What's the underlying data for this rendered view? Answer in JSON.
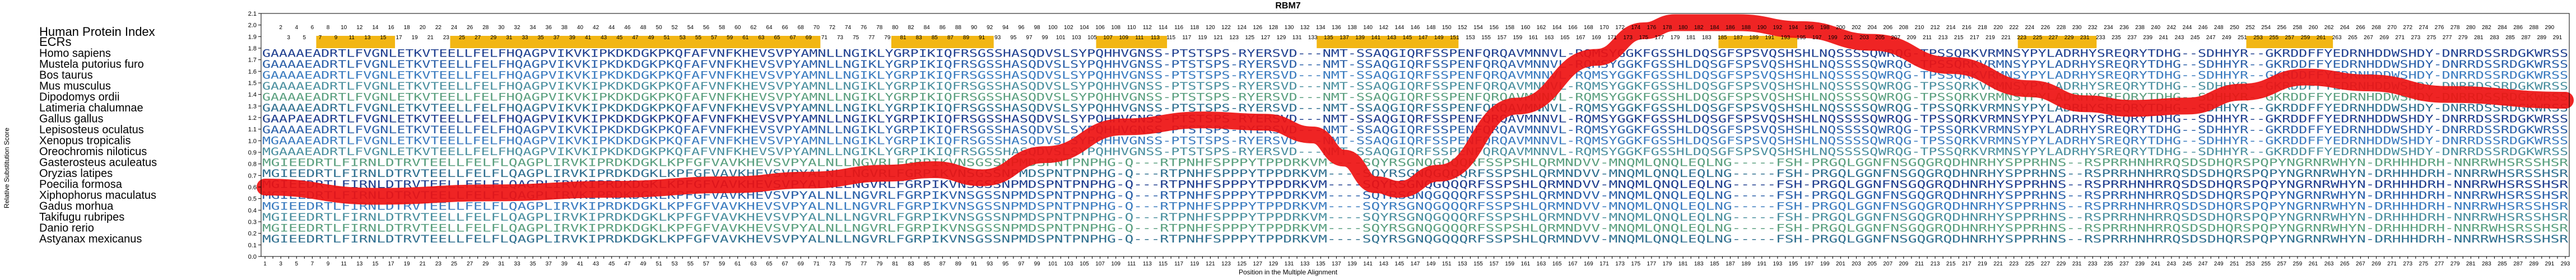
{
  "chart_data": {
    "type": "line",
    "title": "RBM7",
    "xlabel": "Position in the Multiple Alignment",
    "ylabel": "Relative Substitution Score",
    "xlim": [
      1,
      293
    ],
    "ylim": [
      0.0,
      2.1
    ],
    "yticks": [
      "0.0",
      "0.1",
      "0.2",
      "0.3",
      "0.4",
      "0.5",
      "0.6",
      "0.7",
      "0.8",
      "0.9",
      "1.0",
      "1.1",
      "1.2",
      "1.3",
      "1.4",
      "1.5",
      "1.6",
      "1.7",
      "1.8",
      "1.9",
      "2.0",
      "2.1"
    ],
    "grid": false,
    "row_labels": [
      "Human Protein Index",
      "ECRs",
      "Homo sapiens",
      "Mustela putorius furo",
      "Bos taurus",
      "Mus musculus",
      "Dipodomys ordii",
      "Latimeria chalumnae",
      "Gallus gallus",
      "Lepisosteus oculatus",
      "Xenopus tropicalis",
      "Oreochromis niloticus",
      "Gasterosteus aculeatus",
      "Oryzias latipes",
      "Poecilia formosa",
      "Xiphophorus maculatus",
      "Gadus morhua",
      "Takifugu rubripes",
      "Danio rerio",
      "Astyanax mexicanus"
    ],
    "ecr_regions": [
      [
        8,
        17
      ],
      [
        25,
        71
      ],
      [
        81,
        93
      ],
      [
        107,
        115
      ],
      [
        135,
        152
      ],
      [
        186,
        195
      ],
      [
        224,
        233
      ],
      [
        253,
        263
      ]
    ],
    "sequences": [
      "GAAAAEADRTLFVGNLETKVTEELLFELFHQAGPVIKVKIPKDKDGKPKQFAFVNFKHEVSVPYAMNLLNGIKLYGRPIKIQFRSGSSHASQDVSLSYPQHHVGNSS-PTSTSPS-RYERSVD---NMT-SSAQGIQRFSSPENFQRQAVMNNVL-RQMSYGGKFGSSHLDQSGFSPSVQSHSHLNQSSSSQWRQG-TPSSQRKVRMNSYPYLADRHYSREQRYTDHG--SDHHYR--GKRDDFFYEDRNHDDWSHDY-DNRRDSSRDGKWRSS",
      "GAAAAEADRTLFVGNLETKVTEELLFELFHQAGPVIKVKIPKDKDGKPKQFAFVNFKHEVSVPYAMNLLNGIKLYGRPIKIQFRSGSSHASQDVSLSYPQHHVGNSS-PTSTSPS-RYERSVD---NMT-SSAQGIQRFSSPENFQRQAVMNNVL-RQMSYGGKFGSSHLDQSGFSPSVQSHSHLNQSSSSQWRQG-TPSSQRKVRMNSYPYLADRHYSREQRYTDHG--SDHHYR--GKRDDFFYEDRNHDDWSHDY-DNRRDSSRDGKWRSS",
      "GAAAAEADRTLFVGNLETKVTEELLFELFHQAGPVIKVKIPKDKDGKPKQFAFVNFKHEVSVPYAMNLLNGIKLYGRPIKIQFRSGSSHASQDVSLSYPQHHVGNSS-PTSTSPS-RYERSVD---NMT-SSAQGIQRFSSPENFQRQAVMNNVL-RQMSYGGKFGSSHLDQSGFSPSVQSHSHLNQSSSSQWRQG-TPSSQRKVRMNSYPYLADRHYSREQRYTDHG--SDHHYR--GKRDDFFYEDRNHDDWSHDY-DNRRDSSRDGKWRSS",
      "GAAAAEADRTLFVGNLETKVTEELLFELFHQAGPVIKVKIPKDKDGKPKQFAFVNFKHEVSVPYAMNLLNGIKLYGRPIKIQFRSGSSHASQDVSLSYPQHHVGNSS-PTSTSPS-RYERSVD---NMT-SSAQGIQRFSSPENFQRQAVMNNVL-RQMSYGGKFGSSHLDQSGFSPSVQSHSHLNQSSSSQWRQG-TPSSQRKVRMNSYPYLADRHYSREQRYTDHG--SDHHYR--GKRDDFFYEDRNHDDWSHDY-DNRRDSSRDGKWRSS",
      "GAAAAEADRTLFVGNLETKVTEELLFELFHQAGPVIKVKIPKDKDGKPKQFAFVNFKHEVSVPYAMNLLNGIKLYGRPIKIQFRSGSSHASQDVSLSYPQHHVGNSS-PTSTSPS-RYERSVD---NMT-SSAQGIQRFSSPENFQRQAVMNNVL-RQMSYGGKFGSSHLDQSGFSPSVQSHSHLNQSSSSQWRQG-TPSSQRKVRMNSYPYLADRHYSREQRYTDHG--SDHHYR--GKRDDFFYEDRNHDDWSHDY-DNRRDSSRDGKWRSS",
      "GAAAAEADRTLFVGNLETKVTEELLFELFHQAGPVIKVKIPKDKDGKPKQFAFVNFKHEVSVPYAMNLLNGIKLYGRPIKIQFRSGSSHASQDVSLSYPQHHVGNSS-PTSTSPS-RYERSVD---NMT-SSAQGIQRFSSPENFQRQAVMNNVL-RQMSYGGKFGSSHLDQSGFSPSVQSHSHLNQSSSSQWRQG-TPSSQRKVRMNSYPYLADRHYSREQRYTDHG--SDHHYR--GKRDDFFYEDRNHDDWSHDY-DNRRDSSRDGKWRSS",
      "GAAPAEADRTLFVGNLETKVTEELLFELFHQAGPVIKVKIPKDKDGKPKQFAFVNFKHEVSVPYAMNLLNGIKLYGRPIKIQFRSGSSHASQDVSLSYPQHHVGNSS-PTSTSPS-RYERSVD---NMT-SSAQGIQRFSSPENFQRQAVMNNVL-RQMSYGGKFGSSHLDQSGFSPSVQSHSHLNQSSSSQWRQG-TPSSQRKVRMNSYPYLADRHYSREQRYTDHG--SDHHYR--GKRDDFFYEDRNHDDWSHDY-DNRRDSSRDGKWRSS",
      "GAAAAEADRTLFVGNLETKVTEELLFELFHQAGPVIKVKIPKDKDGKPKQFAFVNFKHEVSVPYAMNLLNGIKLYGRPIKIQFRSGSSHASQDVSLSYPQHHVGNSS-PTSTSPS-RYERSVD---NMT-SSAQGIQRFSSPENFQRQAVMNNVL-RQMSYGGKFGSSHLDQSGFSPSVQSHSHLNQSSSSQWRQG-TPSSQRKVRMNSYPYLADRHYSREQRYTDHG--SDHHYR--GKRDDFFYEDRNHDDWSHDY-DNRRDSSRDGKWRSS",
      "MGAAAEADRTLFVGNLETKVTEELLFELFHQAGPVIKVKIPKDKDGKPKQFAFVNFKHEVSVPYAMNLLNGIKLYGRPIKIQFRSGSSHASQDVSLSYPQHHVGNSS-PTSTSPS-RYERSVD---NMT-SSAQGIQRFSSPENFQRQAVMNNVL-RQMSYGGKFGSSHLDQSGFSPSVQSHSHLNQSSSSQWRQG-TPSSQRKVRMNSYPYLADRHYSREQRYTDHG--SDHHYR--GKRDDFFYEDRNHDDWSHDY-DNRRDSSRDGKWRSS",
      "MGAAAEADRTLFVGNLETKVTEELLFELFHQAGPVIKVKIPKDKDGKPKQFAFVNFKHEVSVPYAMNLLNGIKLYGRPIKIQFRSGSSHASQDVSLSYPQHHVGNSS-PTSTSPS-RYERSVD---NMT-SSAQGIQRFSSPENFQRQAVMNNVL-RQMSYGGKFGSSHLDQSGFSPSVQSHSHLNQSSSSQWRQG-TPSSQRKVRMNSYPYLADRHYSREQRYTDHG--SDHHYR--GKRDDFFYEDRNHDDWSHDY-DNRRDSSRDGKWRSS",
      "MGIEEDRTLFIRNLDTRVTEELLFELFLQAGPLIRVKIPRDKDGKLKPFGFVAVKHEVSVPYALNLLNGVRLFGRPIKVNSGSSNPMDSPNTPNPHG-Q---RTPNHFSPPPYTPPDRKVM----SQYRSGNQGQQQRFSSPSHLQRMNDVV-MNQMLQNQLEQLNG-----FSH-PRGQLGGNFNSGQGRQDHNRHYSPPRHNS--RSPRRHNHRRQSDSDHQRSPQPYNGRNRWHYN-DRHHHDRH-NNRRWHSRSSHSR",
      "MGIEEDRTLFIRNLDTRVTEELLFELFLQAGPLIRVKIPRDKDGKLKPFGFVAVKHEVSVPYALNLLNGVRLFGRPIKVNSGSSNPMDSPNTPNPHG-Q---RTPNHFSPPPYTPPDRKVM----SQYRSGNQGQQQRFSSPSHLQRMNDVV-MNQMLQNQLEQLNG-----FSH-PRGQLGGNFNSGQGRQDHNRHYSPPRHNS--RSPRRHNHRRQSDSDHQRSPQPYNGRNRWHYN-DRHHHDRH-NNRRWHSRSSHSR",
      "MGIEEDRTLFIRNLDTRVTEELLFELFLQAGPLIRVKIPRDKDGKLKPFGFVAVKHEVSVPYALNLLNGVRLFGRPIKVNSGSSNPMDSPNTPNPHG-Q---RTPNHFSPPPYTPPDRKVM----SQYRSGNQGQQQRFSSPSHLQRMNDVV-MNQMLQNQLEQLNG-----FSH-PRGQLGGNFNSGQGRQDHNRHYSPPRHNS--RSPRRHNHRRQSDSDHQRSPQPYNGRNRWHYN-DRHHHDRH-NNRRWHSRSSHSR",
      "MGIEEDRTLFIRNLDTRVTEELLFELFLQAGPLIRVKIPRDKDGKLKPFGFVAVKHEVSVPYALNLLNGVRLFGRPIKVNSGSSNPMDSPNTPNPHG-Q---RTPNHFSPPPYTPPDRKVM----SQYRSGNQGQQQRFSSPSHLQRMNDVV-MNQMLQNQLEQLNG-----FSH-PRGQLGGNFNSGQGRQDHNRHYSPPRHNS--RSPRRHNHRRQSDSDHQRSPQPYNGRNRWHYN-DRHHHDRH-NNRRWHSRSSHSR",
      "MGIEEDRTLFIRNLDTRVTEELLFELFLQAGPLIRVKIPRDKDGKLKPFGFVAVKHEVSVPYALNLLNGVRLFGRPIKVNSGSSNPMDSPNTPNPHG-Q---RTPNHFSPPPYTPPDRKVM----SQYRSGNQGQQQRFSSPSHLQRMNDVV-MNQMLQNQLEQLNG-----FSH-PRGQLGGNFNSGQGRQDHNRHYSPPRHNS--RSPRRHNHRRQSDSDHQRSPQPYNGRNRWHYN-DRHHHDRH-NNRRWHSRSSHSR",
      "MGIEEDRTLFIRNLDTRVTEELLFELFLQAGPLIRVKIPRDKDGKLKPFGFVAVKHEVSVPYALNLLNGVRLFGRPIKVNSGSSNPMDSPNTPNPHG-Q---RTPNHFSPPPYTPPDRKVM----SQYRSGNQGQQQRFSSPSHLQRMNDVV-MNQMLQNQLEQLNG-----FSH-PRGQLGGNFNSGQGRQDHNRHYSPPRHNS--RSPRRHNHRRQSDSDHQRSPQPYNGRNRWHYN-DRHHHDRH-NNRRWHSRSSHSR",
      "MGIEEDRTLFIRNLDTRVTEELLFELFLQAGPLIRVKIPRDKDGKLKPFGFVAVKHEVSVPYALNLLNGVRLFGRPIKVNSGSSNPMDSPNTPNPHG-Q---RTPNHFSPPPYTPPDRKVM----SQYRSGNQGQQQRFSSPSHLQRMNDVV-MNQMLQNQLEQLNG-----FSH-PRGQLGGNFNSGQGRQDHNRHYSPPRHNS--RSPRRHNHRRQSDSDHQRSPQPYNGRNRWHYN-DRHHHDRH-NNRRWHSRSSHSR",
      "MGIEEDRTLFIRNLDTRVTEELLFELFLQAGPLIRVKIPRDKDGKLKPFGFVAVKHEVSVPYALNLLNGVRLFGRPIKVNSGSSNPMDSPNTPNPHG-Q---RTPNHFSPPPYTPPDRKVM----SQYRSGNQGQQQRFSSPSHLQRMNDVV-MNQMLQNQLEQLNG-----FSH-PRGQLGGNFNSGQGRQDHNRHYSPPRHNS--RSPRRHNHRRQSDSDHQRSPQPYNGRNRWHYN-DRHHHDRH-NNRRWHSRSSHSR"
    ],
    "series": [
      {
        "x": [
          1,
          15,
          30,
          45,
          60,
          70,
          80,
          86,
          92,
          100,
          110,
          120,
          128,
          134,
          138,
          142,
          145,
          150,
          160,
          170,
          176,
          180,
          188,
          196,
          205,
          215,
          225,
          232,
          238,
          245,
          252,
          260,
          268,
          278,
          293
        ],
        "y": [
          0.6,
          0.52,
          0.55,
          0.58,
          0.62,
          0.66,
          0.72,
          0.75,
          0.68,
          0.88,
          1.12,
          1.18,
          1.16,
          1.05,
          0.85,
          0.62,
          0.58,
          0.72,
          1.3,
          1.72,
          1.95,
          2.02,
          2.02,
          1.96,
          1.85,
          1.65,
          1.45,
          1.32,
          1.28,
          1.3,
          1.42,
          1.55,
          1.5,
          1.4,
          1.35
        ]
      }
    ]
  }
}
